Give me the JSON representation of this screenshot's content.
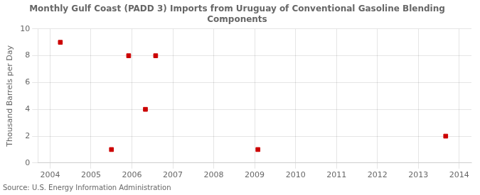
{
  "chart_data": {
    "type": "scatter",
    "title": "Monthly Gulf Coast (PADD 3) Imports from Uruguay of Conventional Gasoline Blending\nComponents",
    "ylabel": "Thousand Barrels per Day",
    "annotations": [
      "Source: U.S. Energy Information Administration"
    ],
    "x": [
      2004.25,
      2005.5,
      2005.92,
      2006.33,
      2006.58,
      2009.08,
      2013.67
    ],
    "values": [
      9,
      1,
      8,
      4,
      8,
      1,
      2
    ],
    "color": "#cc0000",
    "marker": "square",
    "xlim": [
      2003.7,
      2014.3
    ],
    "ylim": [
      0,
      10
    ],
    "xticks": [
      2004,
      2005,
      2006,
      2007,
      2008,
      2009,
      2010,
      2011,
      2012,
      2013,
      2014
    ],
    "yticks": [
      0,
      2,
      4,
      6,
      8,
      10
    ],
    "grid": true
  }
}
